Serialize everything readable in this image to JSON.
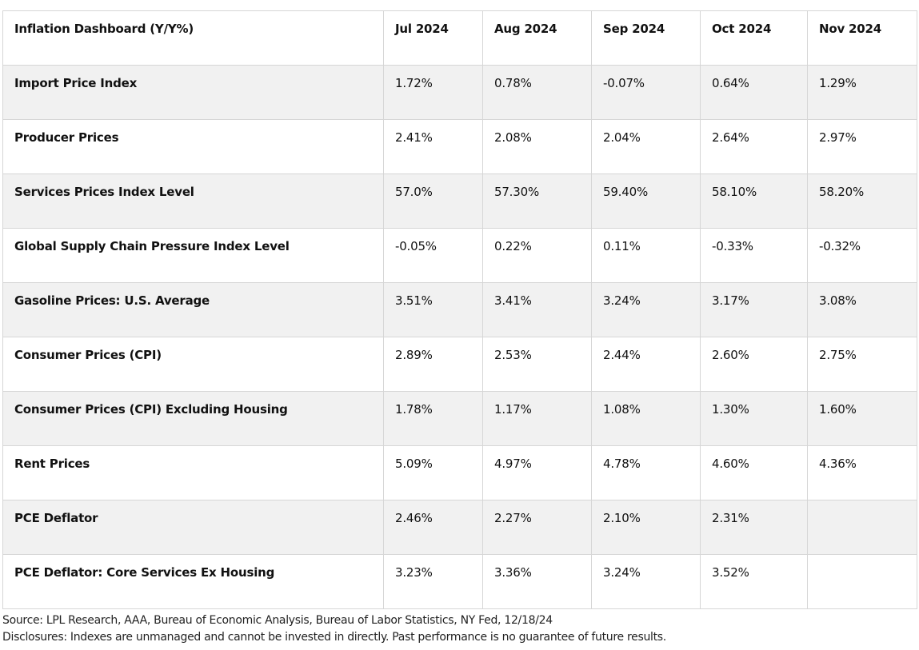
{
  "table": {
    "headers": [
      "Inflation Dashboard (Y/Y%)",
      "Jul 2024",
      "Aug 2024",
      "Sep 2024",
      "Oct 2024",
      "Nov 2024"
    ],
    "rows": [
      [
        "Import Price Index",
        "1.72%",
        "0.78%",
        "-0.07%",
        "0.64%",
        "1.29%"
      ],
      [
        "Producer Prices",
        "2.41%",
        "2.08%",
        "2.04%",
        "2.64%",
        "2.97%"
      ],
      [
        "Services Prices Index Level",
        "57.0%",
        "57.30%",
        "59.40%",
        "58.10%",
        "58.20%"
      ],
      [
        "Global Supply Chain Pressure Index Level",
        "-0.05%",
        "0.22%",
        "0.11%",
        "-0.33%",
        "-0.32%"
      ],
      [
        "Gasoline Prices: U.S. Average",
        "3.51%",
        "3.41%",
        "3.24%",
        "3.17%",
        "3.08%"
      ],
      [
        "Consumer Prices (CPI)",
        "2.89%",
        "2.53%",
        "2.44%",
        "2.60%",
        "2.75%"
      ],
      [
        "Consumer Prices (CPI) Excluding Housing",
        "1.78%",
        "1.17%",
        "1.08%",
        "1.30%",
        "1.60%"
      ],
      [
        "Rent Prices",
        "5.09%",
        "4.97%",
        "4.78%",
        "4.60%",
        "4.36%"
      ],
      [
        "PCE Deflator",
        "2.46%",
        "2.27%",
        "2.10%",
        "2.31%",
        ""
      ],
      [
        "PCE Deflator: Core Services Ex Housing",
        "3.23%",
        "3.36%",
        "3.24%",
        "3.52%",
        ""
      ]
    ]
  },
  "footer": {
    "source": "Source: LPL Research, AAA, Bureau of Economic Analysis, Bureau of Labor Statistics, NY Fed, 12/18/24",
    "disclosures": "Disclosures: Indexes are unmanaged and cannot be invested in directly. Past performance is no guarantee of future results."
  },
  "colors": {
    "stripe": "#f1f1f1",
    "border": "#d6d6d6",
    "text": "#111111"
  }
}
